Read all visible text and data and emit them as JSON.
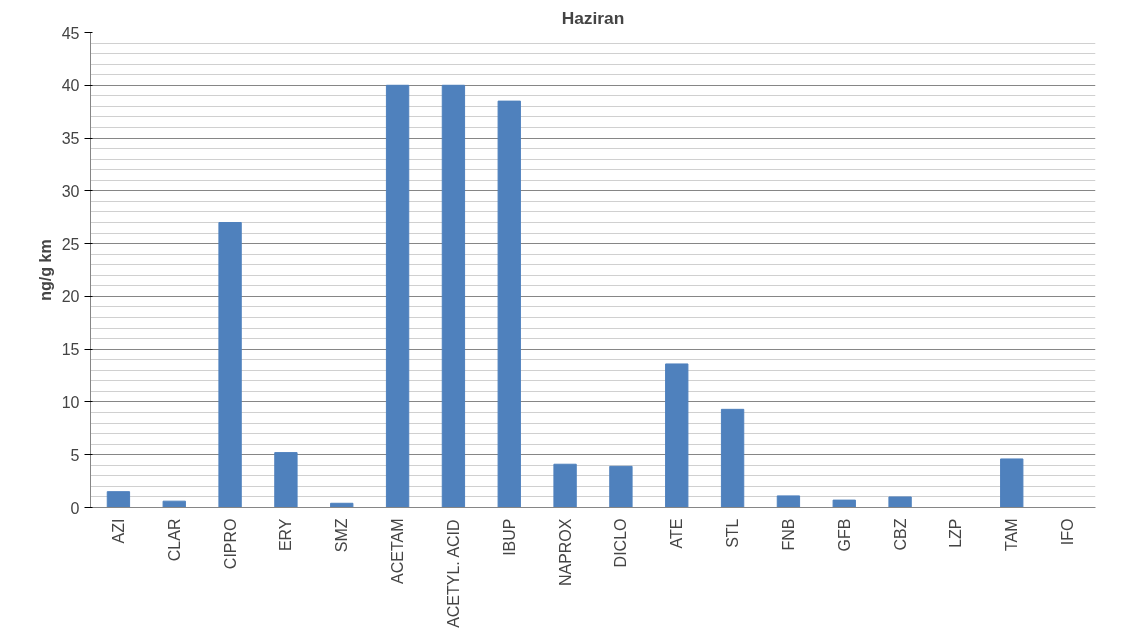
{
  "chart_data": {
    "type": "bar",
    "title": "Haziran",
    "ylabel": "ng/g km",
    "categories": [
      "AZI",
      "CLAR",
      "CIPRO",
      "ERY",
      "SMZ",
      "ACETAM",
      "ACETYL. ACID",
      "IBUP",
      "NAPROX",
      "DICLO",
      "ATE",
      "STL",
      "FNB",
      "GFB",
      "CBZ",
      "LZP",
      "TAM",
      "IFO"
    ],
    "values": [
      1.5,
      0.6,
      27,
      5.2,
      0.4,
      40,
      40,
      38.5,
      4.1,
      3.9,
      13.6,
      9.3,
      1.1,
      0.7,
      1.0,
      0,
      4.6,
      0
    ],
    "color": "#4f81bd",
    "ylim": [
      0,
      45
    ],
    "yticks": [
      0,
      5,
      10,
      15,
      20,
      25,
      30,
      35,
      40,
      45
    ],
    "grid": "y"
  }
}
